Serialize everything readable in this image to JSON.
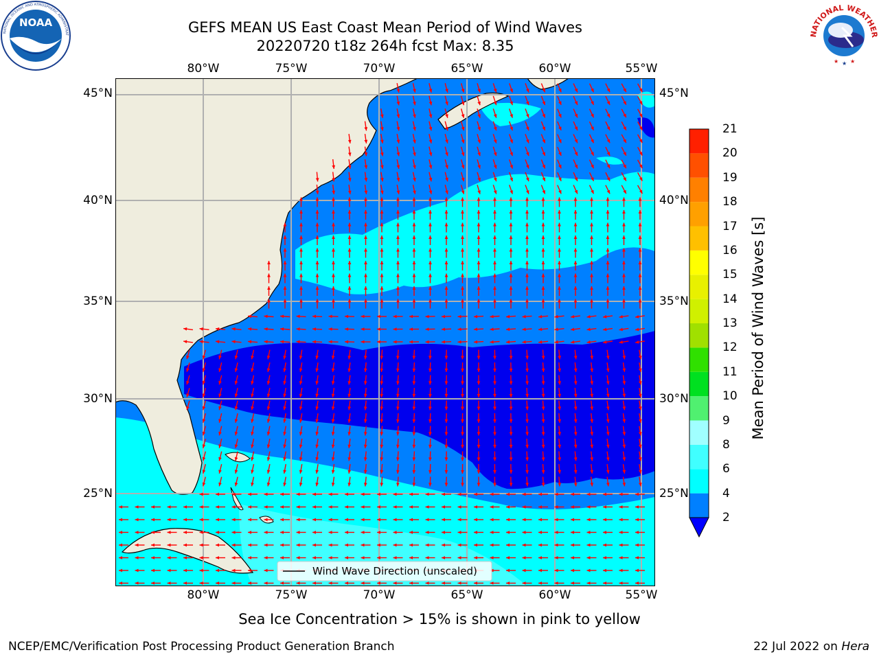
{
  "header": {
    "title_line1": "GEFS MEAN US East Coast Mean Period of Wind Waves",
    "title_line2": "20220720 t18z 264h fcst   Max: 8.35"
  },
  "logos": {
    "noaa_text": "NOAA",
    "noaa_ring": "NATIONAL OCEANIC AND ATMOSPHERIC ADMINISTRATION · U.S. DEPARTMENT OF COMMERCE",
    "nws_ring": "NATIONAL WEATHER SERVICE"
  },
  "axes": {
    "lon_labels": [
      "80°W",
      "75°W",
      "70°W",
      "65°W",
      "60°W",
      "55°W"
    ],
    "lat_labels": [
      "45°N",
      "40°N",
      "35°N",
      "30°N",
      "25°N"
    ]
  },
  "legend": {
    "label": "Wind Wave Direction (unscaled)"
  },
  "colorbar": {
    "label": "Mean Period of Wind Waves [s]",
    "ticks": [
      "21",
      "20",
      "19",
      "18",
      "17",
      "16",
      "15",
      "14",
      "13",
      "12",
      "11",
      "10",
      "9",
      "8",
      "6",
      "4",
      "2"
    ],
    "segments": [
      {
        "from": 2,
        "to": 4,
        "color": "#0080ff"
      },
      {
        "from": 4,
        "to": 6,
        "color": "#00ffff"
      },
      {
        "from": 6,
        "to": 8,
        "color": "#40ffff"
      },
      {
        "from": 8,
        "to": 9,
        "color": "#a0ffff"
      },
      {
        "from": 9,
        "to": 10,
        "color": "#50f070"
      },
      {
        "from": 10,
        "to": 11,
        "color": "#00e020"
      },
      {
        "from": 11,
        "to": 12,
        "color": "#30e000"
      },
      {
        "from": 12,
        "to": 13,
        "color": "#a0e000"
      },
      {
        "from": 13,
        "to": 14,
        "color": "#d0f000"
      },
      {
        "from": 14,
        "to": 15,
        "color": "#e8f000"
      },
      {
        "from": 15,
        "to": 16,
        "color": "#ffff00"
      },
      {
        "from": 16,
        "to": 17,
        "color": "#ffc000"
      },
      {
        "from": 17,
        "to": 18,
        "color": "#ffa000"
      },
      {
        "from": 18,
        "to": 19,
        "color": "#ff8000"
      },
      {
        "from": 19,
        "to": 20,
        "color": "#ff5000"
      },
      {
        "from": 20,
        "to": 21,
        "color": "#ff2000"
      }
    ],
    "under_color": "#0000ff"
  },
  "colors": {
    "land": "#efedde",
    "lt2": "#0000ee",
    "c2_4": "#0080ff",
    "c4_6": "#00ffff",
    "c6_8": "#40ffff",
    "arrow": "#ff0000"
  },
  "footer": {
    "ice_note": "Sea Ice Concentration > 15% is shown in pink to yellow",
    "credit": "NCEP/EMC/Verification Post Processing Product Generation Branch",
    "date": "22 Jul 2022 on",
    "machine": "Hera"
  }
}
